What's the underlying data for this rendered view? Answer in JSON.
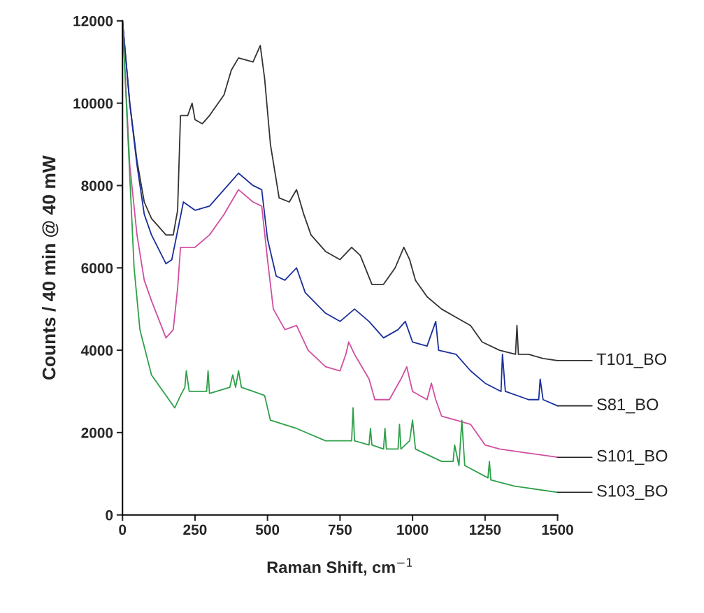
{
  "chart_data": {
    "type": "line",
    "xlabel": "Raman Shift, cm$^{−1}$",
    "ylabel": "Counts / 40 min @ 40 mW",
    "xlim": [
      0,
      1500
    ],
    "ylim": [
      0,
      12000
    ],
    "xticks": [
      0,
      250,
      500,
      750,
      1000,
      1250,
      1500
    ],
    "yticks": [
      0,
      2000,
      4000,
      6000,
      8000,
      10000,
      12000
    ],
    "grid": false,
    "legend": false,
    "marker": "none",
    "line_style": "solid",
    "series": [
      {
        "name": "T101_BO",
        "color": "#333333",
        "x": [
          0,
          25,
          50,
          75,
          100,
          150,
          175,
          190,
          200,
          225,
          240,
          250,
          275,
          300,
          350,
          375,
          400,
          450,
          475,
          490,
          510,
          540,
          575,
          600,
          625,
          650,
          700,
          750,
          790,
          820,
          860,
          900,
          940,
          970,
          990,
          1010,
          1050,
          1100,
          1150,
          1200,
          1240,
          1300,
          1355,
          1360,
          1365,
          1400,
          1450,
          1500
        ],
        "values": [
          12000,
          10000,
          8600,
          7600,
          7200,
          6800,
          6800,
          7400,
          9700,
          9700,
          10000,
          9600,
          9500,
          9700,
          10200,
          10800,
          11100,
          11000,
          11400,
          10600,
          9000,
          7700,
          7600,
          7900,
          7300,
          6800,
          6400,
          6200,
          6500,
          6300,
          5600,
          5600,
          6000,
          6500,
          6200,
          5700,
          5300,
          5000,
          4800,
          4600,
          4200,
          4000,
          3900,
          4600,
          3900,
          3900,
          3800,
          3750
        ]
      },
      {
        "name": "S81_BO",
        "color": "#1a2f9a",
        "x": [
          0,
          25,
          50,
          75,
          100,
          150,
          170,
          190,
          210,
          250,
          300,
          350,
          400,
          450,
          480,
          500,
          530,
          560,
          600,
          630,
          700,
          750,
          800,
          850,
          900,
          950,
          975,
          1000,
          1050,
          1080,
          1090,
          1150,
          1200,
          1250,
          1305,
          1310,
          1320,
          1400,
          1435,
          1440,
          1450,
          1500
        ],
        "values": [
          12000,
          10000,
          8500,
          7300,
          6800,
          6100,
          6200,
          6900,
          7600,
          7400,
          7500,
          7900,
          8300,
          8000,
          7900,
          6700,
          5800,
          5700,
          6000,
          5400,
          4900,
          4700,
          5000,
          4700,
          4300,
          4500,
          4700,
          4200,
          4100,
          4700,
          4000,
          3900,
          3500,
          3200,
          3000,
          3900,
          3000,
          2800,
          2800,
          3300,
          2800,
          2650
        ]
      },
      {
        "name": "S101_BO",
        "color": "#d04fa0",
        "x": [
          0,
          25,
          50,
          75,
          100,
          150,
          175,
          190,
          200,
          250,
          300,
          350,
          400,
          450,
          480,
          500,
          520,
          560,
          600,
          640,
          700,
          750,
          770,
          780,
          800,
          850,
          870,
          920,
          960,
          980,
          1000,
          1050,
          1065,
          1080,
          1100,
          1150,
          1200,
          1250,
          1300,
          1400,
          1500
        ],
        "values": [
          12000,
          8500,
          6800,
          5700,
          5200,
          4300,
          4500,
          5500,
          6500,
          6500,
          6800,
          7300,
          7900,
          7600,
          7500,
          6200,
          5000,
          4500,
          4600,
          4000,
          3600,
          3500,
          3900,
          4200,
          3900,
          3300,
          2800,
          2800,
          3300,
          3600,
          3000,
          2800,
          3200,
          2800,
          2400,
          2300,
          2200,
          1700,
          1600,
          1500,
          1400
        ]
      },
      {
        "name": "S103_BO",
        "color": "#2fa04a",
        "x": [
          0,
          20,
          40,
          60,
          100,
          150,
          180,
          200,
          215,
          220,
          230,
          290,
          295,
          300,
          370,
          380,
          390,
          400,
          410,
          450,
          490,
          510,
          600,
          700,
          790,
          795,
          800,
          850,
          855,
          860,
          900,
          905,
          910,
          950,
          955,
          960,
          990,
          1000,
          1010,
          1100,
          1140,
          1145,
          1160,
          1170,
          1180,
          1260,
          1265,
          1270,
          1350,
          1400,
          1500
        ],
        "values": [
          12000,
          9000,
          6000,
          4500,
          3400,
          2900,
          2600,
          2900,
          3100,
          3500,
          3000,
          3000,
          3500,
          2950,
          3100,
          3400,
          3100,
          3500,
          3100,
          3000,
          2900,
          2300,
          2100,
          1800,
          1800,
          2600,
          1800,
          1700,
          2100,
          1700,
          1600,
          2100,
          1600,
          1600,
          2200,
          1600,
          1800,
          2300,
          1600,
          1300,
          1300,
          1700,
          1200,
          2300,
          1200,
          900,
          1300,
          850,
          700,
          650,
          550
        ]
      }
    ]
  }
}
